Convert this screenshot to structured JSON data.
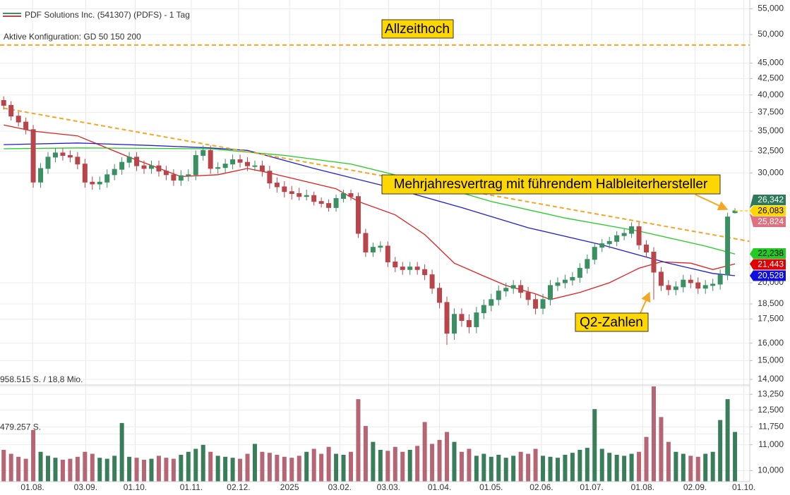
{
  "chart_data": {
    "type": "candlestick",
    "title": "PDF Solutions Inc. (541307) (PDFS) - 1 Tag",
    "subtitle": "Aktive Konfiguration: GD 50 150 200",
    "log_scale": true,
    "grid": true,
    "xlim": [
      -0.5,
      101
    ],
    "xticks": [
      {
        "value": 3.9,
        "label": "01.08."
      },
      {
        "value": 11.1,
        "label": "03.09."
      },
      {
        "value": 17.8,
        "label": "01.10."
      },
      {
        "value": 25.4,
        "label": "01.11."
      },
      {
        "value": 31.8,
        "label": "02.12."
      },
      {
        "value": 38.7,
        "label": "2025"
      },
      {
        "value": 45.5,
        "label": "03.02."
      },
      {
        "value": 52.1,
        "label": "03.03."
      },
      {
        "value": 59,
        "label": "01.04."
      },
      {
        "value": 66,
        "label": "01.05."
      },
      {
        "value": 72.8,
        "label": "02.06."
      },
      {
        "value": 79.6,
        "label": "01.07."
      },
      {
        "value": 86.5,
        "label": "01.08."
      },
      {
        "value": 93.6,
        "label": "02.09."
      },
      {
        "value": 100.2,
        "label": "01.10."
      }
    ],
    "ylim": [
      9.6,
      56.8
    ],
    "yticks": [
      {
        "value": 55,
        "label": "55,000"
      },
      {
        "value": 50,
        "label": "50,000"
      },
      {
        "value": 45,
        "label": "45,000"
      },
      {
        "value": 42.5,
        "label": "42,500"
      },
      {
        "value": 40,
        "label": "40,000"
      },
      {
        "value": 37.5,
        "label": "37,500"
      },
      {
        "value": 35,
        "label": "35,000"
      },
      {
        "value": 32.5,
        "label": "32,500"
      },
      {
        "value": 30,
        "label": "30,000"
      },
      {
        "value": 20,
        "label": "20,000"
      },
      {
        "value": 18.5,
        "label": "18,500"
      },
      {
        "value": 17.5,
        "label": "17,500"
      },
      {
        "value": 16,
        "label": "16,000"
      },
      {
        "value": 15,
        "label": "15,000"
      },
      {
        "value": 14,
        "label": "14,000"
      },
      {
        "value": 13.25,
        "label": "13,250"
      },
      {
        "value": 12.5,
        "label": "12,500"
      },
      {
        "value": 11.75,
        "label": "11,750"
      },
      {
        "value": 11,
        "label": "11,000"
      },
      {
        "value": 10,
        "label": "10,000"
      }
    ],
    "up_color": "#3b8f62",
    "down_color": "#b8454a",
    "open": [
      39.2,
      38.5,
      37.0,
      36.2,
      35.2,
      29.0,
      30.5,
      31.8,
      32.3,
      32.0,
      31.8,
      31.0,
      29.0,
      28.8,
      29.0,
      29.8,
      30.4,
      31.2,
      31.8,
      30.8,
      30.5,
      30.8,
      30.2,
      29.8,
      29.2,
      29.7,
      29.8,
      32.0,
      32.6,
      30.5,
      30.6,
      31.0,
      31.5,
      31.2,
      30.8,
      30.8,
      30.2,
      28.9,
      28.5,
      28.0,
      27.8,
      27.5,
      27.6,
      27.0,
      26.8,
      26.4,
      27.3,
      27.8,
      27.5,
      24.0,
      22.4,
      22.8,
      22.9,
      21.6,
      21.2,
      21.0,
      21.2,
      21.0,
      20.6,
      19.6,
      18.6,
      16.6,
      17.8,
      17.4,
      17.0,
      17.9,
      18.4,
      18.8,
      19.4,
      19.6,
      19.8,
      19.3,
      18.8,
      18.2,
      18.8,
      19.8,
      20.0,
      20.2,
      20.4,
      21.1,
      21.8,
      22.8,
      23.1,
      23.3,
      23.8,
      24.0,
      24.6,
      23.0,
      22.4,
      20.8,
      19.8,
      19.5,
      19.7,
      20.2,
      20.0,
      19.6,
      19.8,
      19.9,
      20.6,
      25.9
    ],
    "high": [
      39.8,
      39.1,
      37.6,
      36.8,
      35.8,
      31.1,
      32.4,
      32.9,
      32.9,
      32.6,
      32.4,
      31.6,
      29.6,
      29.6,
      30.4,
      31.0,
      31.8,
      32.4,
      32.4,
      31.4,
      31.4,
      31.4,
      30.8,
      30.4,
      30.3,
      30.4,
      32.6,
      33.2,
      33.2,
      31.2,
      31.6,
      32.1,
      32.1,
      31.8,
      31.4,
      31.4,
      30.8,
      29.5,
      29.1,
      28.6,
      28.4,
      28.2,
      28.0,
      27.4,
      27.2,
      27.7,
      28.2,
      28.2,
      27.9,
      24.4,
      23.2,
      23.3,
      23.3,
      22.0,
      21.6,
      21.6,
      21.6,
      21.4,
      21.0,
      20.0,
      19.0,
      18.2,
      18.2,
      17.8,
      18.3,
      18.8,
      19.2,
      19.8,
      20.0,
      20.2,
      20.2,
      19.7,
      19.2,
      19.2,
      20.2,
      20.4,
      20.6,
      20.8,
      21.5,
      22.2,
      23.2,
      23.5,
      23.7,
      24.2,
      24.4,
      25.0,
      25.0,
      23.4,
      22.8,
      21.2,
      20.2,
      20.1,
      20.6,
      20.6,
      20.4,
      20.2,
      20.3,
      21.0,
      25.9,
      26.342
    ],
    "low": [
      37.9,
      36.4,
      35.6,
      34.6,
      28.4,
      28.4,
      29.9,
      31.2,
      31.4,
      31.2,
      30.4,
      28.4,
      28.2,
      28.2,
      28.4,
      29.2,
      29.8,
      30.6,
      30.2,
      29.9,
      29.9,
      29.6,
      29.2,
      28.6,
      28.6,
      29.1,
      29.2,
      31.4,
      29.9,
      29.9,
      30.0,
      30.4,
      30.6,
      30.2,
      30.2,
      29.6,
      28.3,
      27.9,
      27.4,
      27.2,
      27.1,
      27.1,
      26.6,
      26.4,
      26.0,
      26.0,
      26.9,
      27.1,
      23.6,
      22.0,
      22.0,
      22.4,
      21.2,
      20.8,
      20.6,
      20.6,
      20.6,
      20.2,
      19.2,
      18.2,
      15.9,
      16.2,
      17.0,
      16.6,
      16.6,
      17.5,
      18.0,
      18.4,
      19.0,
      19.2,
      18.9,
      18.4,
      17.8,
      17.8,
      18.4,
      19.4,
      19.6,
      19.8,
      20.0,
      20.7,
      21.4,
      22.4,
      22.7,
      22.9,
      23.4,
      23.6,
      22.6,
      22.0,
      18.8,
      19.4,
      19.1,
      19.1,
      19.3,
      19.6,
      19.2,
      19.2,
      19.4,
      19.5,
      20.2,
      25.824
    ],
    "close": [
      38.5,
      37.0,
      36.2,
      35.2,
      29.0,
      30.5,
      31.8,
      32.3,
      32.0,
      31.8,
      31.0,
      29.0,
      28.8,
      29.0,
      29.8,
      30.4,
      31.2,
      31.8,
      30.8,
      30.5,
      30.8,
      30.2,
      29.8,
      29.2,
      29.7,
      29.8,
      32.0,
      32.6,
      30.5,
      30.6,
      31.0,
      31.5,
      31.2,
      30.8,
      30.8,
      30.2,
      28.9,
      28.5,
      28.0,
      27.8,
      27.5,
      27.6,
      27.0,
      26.8,
      26.4,
      27.3,
      27.8,
      27.5,
      24.0,
      22.4,
      22.8,
      22.9,
      21.6,
      21.2,
      21.0,
      21.2,
      21.0,
      20.6,
      19.6,
      18.6,
      16.6,
      17.8,
      17.4,
      17.0,
      17.9,
      18.4,
      18.8,
      19.4,
      19.6,
      19.8,
      19.3,
      18.8,
      18.2,
      18.8,
      19.8,
      20.0,
      20.2,
      20.4,
      21.1,
      21.8,
      22.8,
      23.1,
      23.3,
      23.8,
      24.0,
      24.6,
      23.0,
      22.4,
      20.8,
      19.8,
      19.5,
      19.7,
      20.2,
      20.0,
      19.6,
      19.8,
      19.9,
      20.6,
      25.5,
      26.083
    ],
    "volume": {
      "values": [
        320000,
        280000,
        250000,
        230000,
        520000,
        300000,
        260000,
        240000,
        220000,
        230000,
        250000,
        300000,
        280000,
        240000,
        230000,
        260000,
        590000,
        250000,
        240000,
        220000,
        230000,
        260000,
        240000,
        230000,
        270000,
        300000,
        330000,
        370000,
        300000,
        260000,
        250000,
        240000,
        230000,
        280000,
        380000,
        300000,
        290000,
        270000,
        250000,
        240000,
        260000,
        300000,
        330000,
        280000,
        350000,
        280000,
        270000,
        300000,
        830000,
        560000,
        400000,
        320000,
        310000,
        350000,
        300000,
        320000,
        360000,
        600000,
        380000,
        420000,
        500000,
        400000,
        300000,
        330000,
        260000,
        280000,
        250000,
        270000,
        240000,
        260000,
        300000,
        280000,
        330000,
        260000,
        250000,
        240000,
        270000,
        290000,
        320000,
        340000,
        730000,
        330000,
        290000,
        270000,
        260000,
        280000,
        300000,
        450000,
        958515,
        650000,
        400000,
        300000,
        280000,
        260000,
        250000,
        280000,
        300000,
        620000,
        830000,
        500000
      ],
      "ylim": [
        0,
        958515
      ],
      "yticks": [
        {
          "value": 958515,
          "label": "958.515 S. / 18,8 Mio."
        },
        {
          "value": 479257,
          "label": "479.257 S."
        }
      ],
      "up_color": "#3a7d5a",
      "down_color": "#b56573"
    },
    "moving_averages": [
      {
        "color": "#e02020",
        "x": [
          0,
          4,
          10,
          17,
          24,
          29,
          33,
          36,
          45,
          48,
          53,
          57,
          61,
          65,
          68,
          72,
          74,
          78,
          82,
          86,
          89,
          93,
          96,
          99
        ],
        "values": [
          35.8,
          35.0,
          34.4,
          31.8,
          29.6,
          29.8,
          30.5,
          30.0,
          28.3,
          27.0,
          25.7,
          23.9,
          21.5,
          20.5,
          19.8,
          19.2,
          18.8,
          19.3,
          20.0,
          21.1,
          21.6,
          21.5,
          21.0,
          21.443
        ]
      },
      {
        "color": "#2020d0",
        "x": [
          0,
          10,
          20,
          28,
          33,
          42,
          52,
          62,
          71,
          81,
          90,
          96,
          99
        ],
        "values": [
          33.3,
          33.5,
          33.2,
          32.9,
          32.6,
          30.5,
          28.5,
          26.4,
          24.5,
          23.0,
          21.5,
          20.7,
          20.528
        ]
      },
      {
        "color": "#22cc22",
        "x": [
          0,
          10,
          28,
          38,
          47,
          57,
          66,
          76,
          86,
          95,
          99
        ],
        "values": [
          32.8,
          32.9,
          32.8,
          32.0,
          31.0,
          29.0,
          27.0,
          25.4,
          24.2,
          22.9,
          22.238
        ]
      }
    ],
    "trendline": {
      "color": "#f5a623",
      "x": [
        0,
        101
      ],
      "values": [
        38.1,
        23.3
      ]
    },
    "ath_line": {
      "color": "#f5a623",
      "value": 48.1
    },
    "annotations": [
      {
        "text": "Allzeithoch"
      },
      {
        "text": "Mehrjahresvertrag mit führendem Halbleiterhersteller"
      },
      {
        "text": "Q2-Zahlen"
      }
    ],
    "price_flags": [
      {
        "value": 26.342,
        "label": "26,342",
        "color": "#2f7a5a",
        "text_color": "#ffffff"
      },
      {
        "value": 26.083,
        "label": "26,083",
        "color": "#ffd700",
        "text_color": "#000000"
      },
      {
        "value": 25.824,
        "label": "25,824",
        "color": "#e07080",
        "text_color": "#ffffff"
      },
      {
        "value": 22.238,
        "label": "22,238",
        "color": "#22cc22",
        "text_color": "#000000"
      },
      {
        "value": 21.443,
        "label": "21,443",
        "color": "#dd0000",
        "text_color": "#ffffff"
      },
      {
        "value": 20.528,
        "label": "20,528",
        "color": "#1010dd",
        "text_color": "#ffffff"
      }
    ]
  }
}
